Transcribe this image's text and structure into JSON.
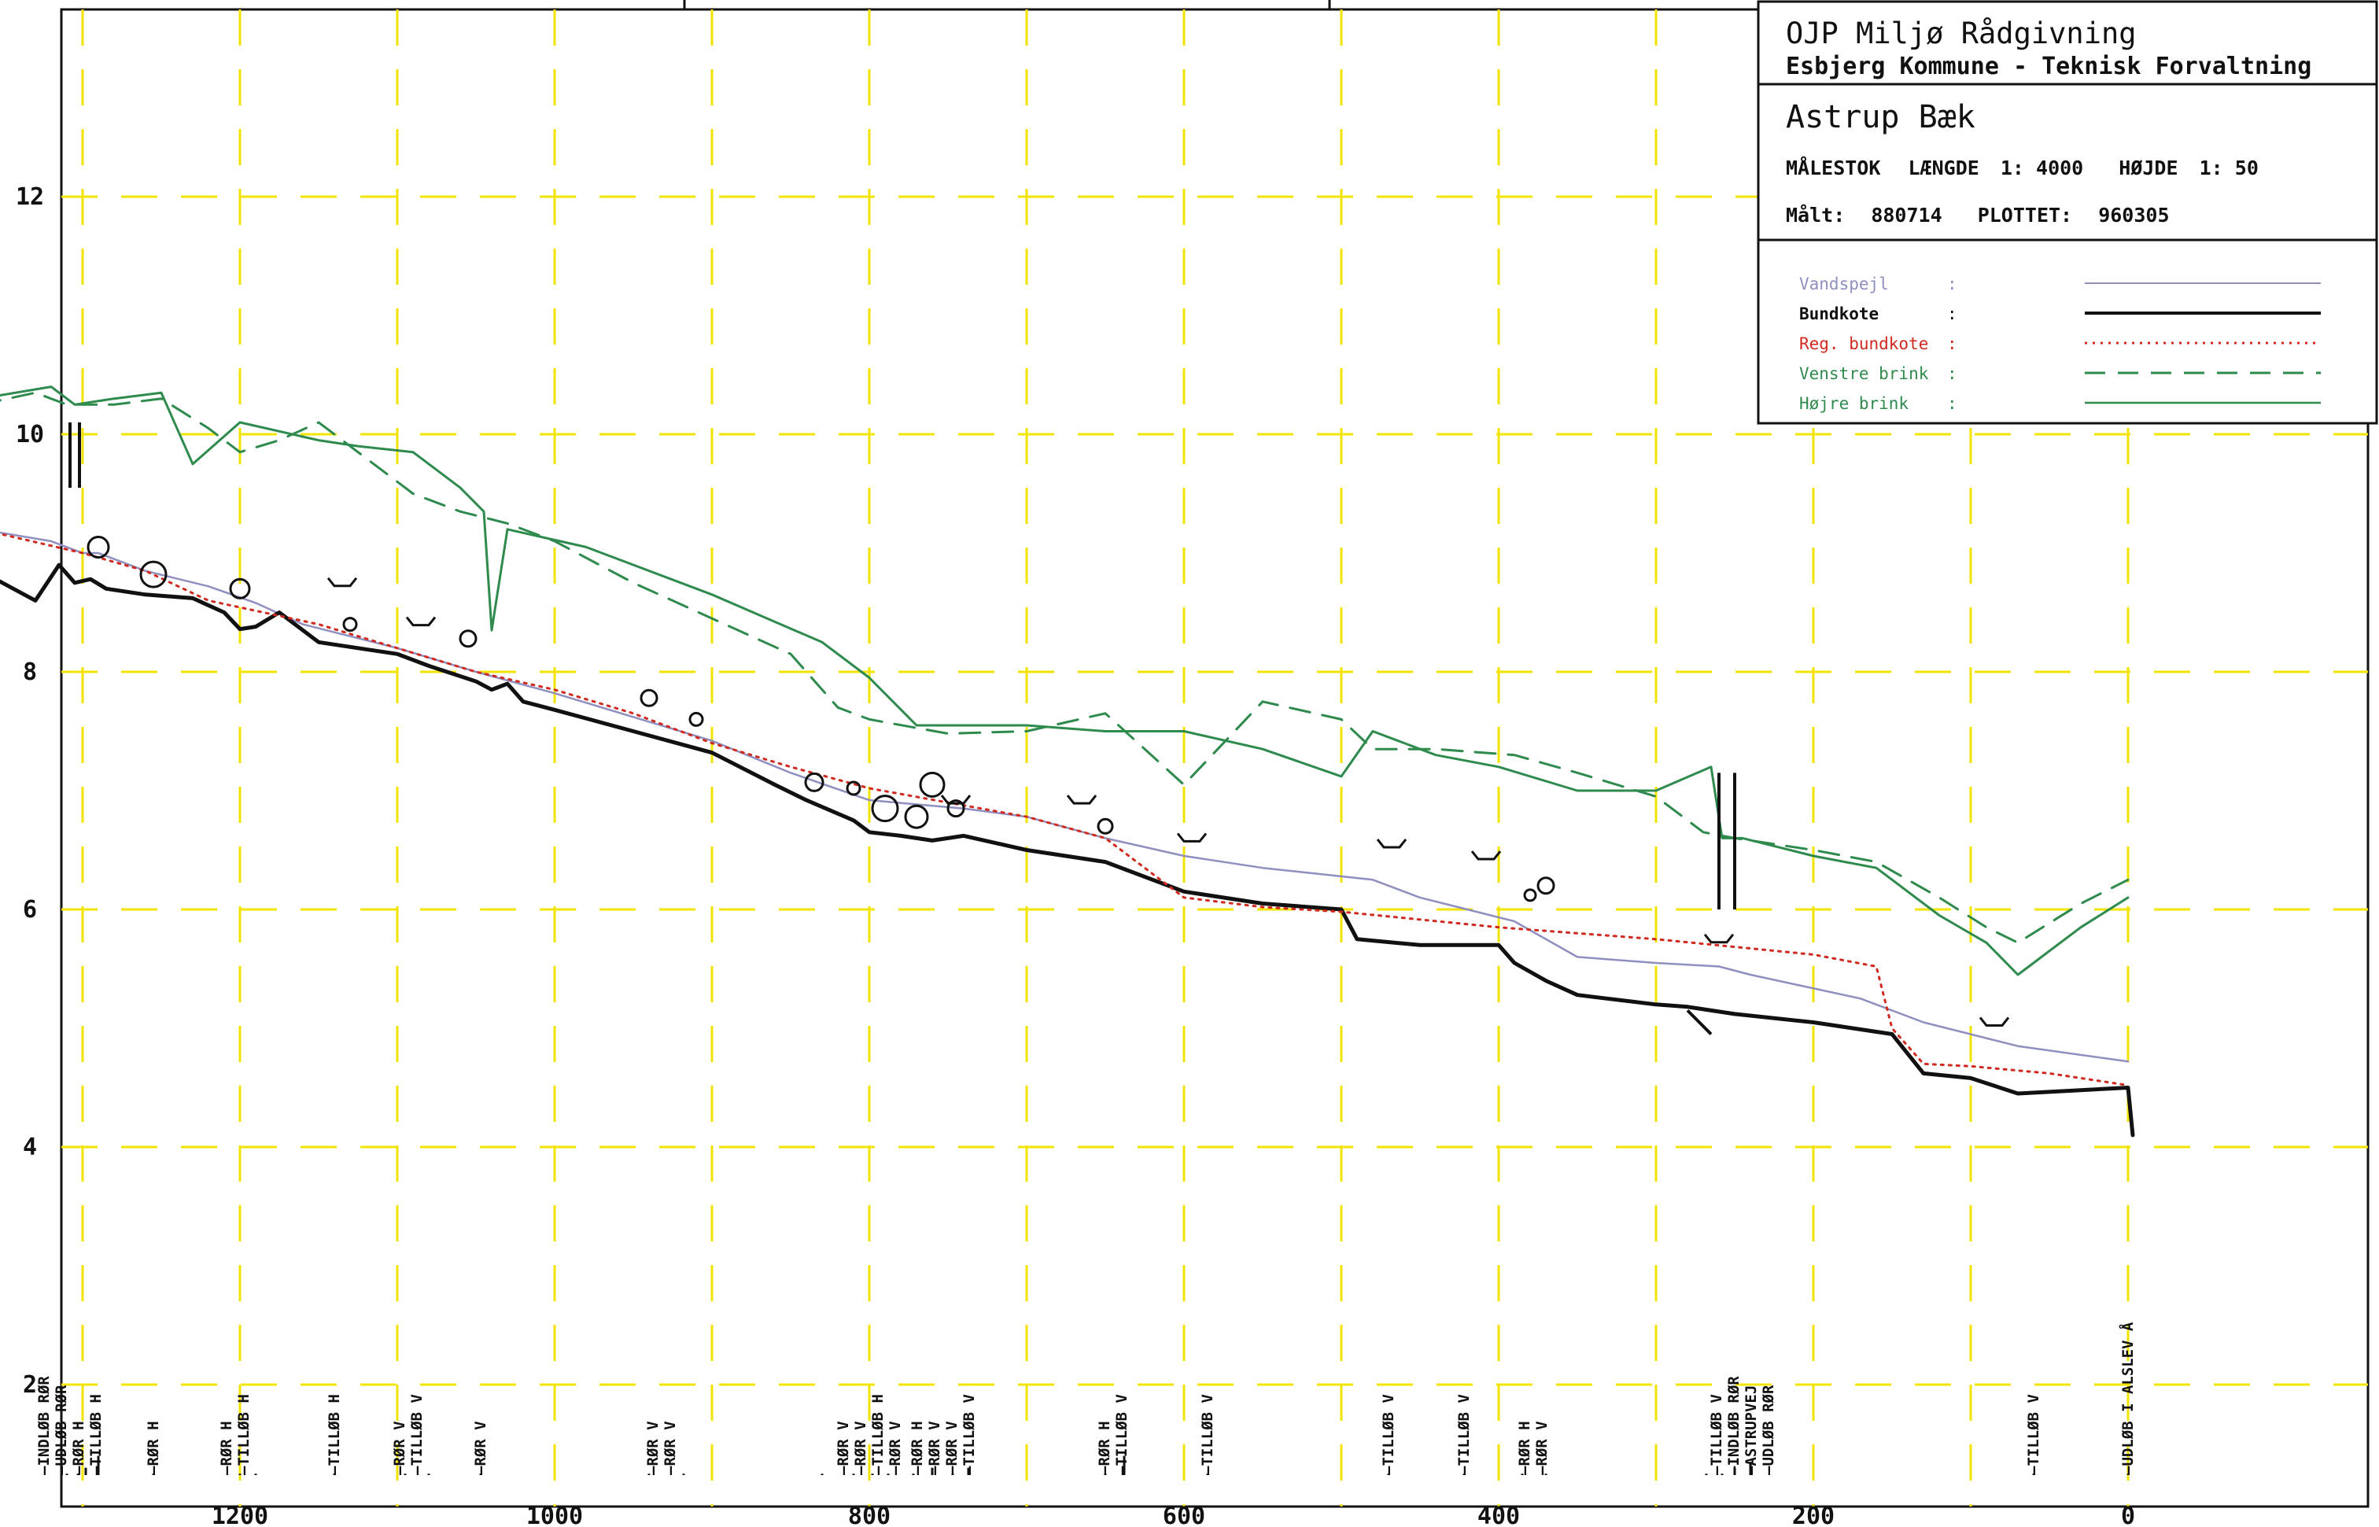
{
  "title_block": {
    "firm": "OJP Miljø Rådgivning",
    "client": "Esbjerg Kommune - Teknisk Forvaltning",
    "stream": "Astrup Bæk",
    "scale_label": "MÅLESTOK",
    "length_label": "LÆNGDE",
    "length_value": "1: 4000",
    "height_label": "HØJDE",
    "height_value": "1: 50",
    "measured_label": "Målt:",
    "measured_value": "880714",
    "plotted_label": "PLOTTET:",
    "plotted_value": "960305"
  },
  "colors": {
    "grid": "#f2e400",
    "water": "#8f8fc0",
    "bed": "#111111",
    "regbed": "#d02a20",
    "left_bank": "#2f8a4e",
    "right_bank": "#2f8a4e"
  },
  "chart_data": {
    "type": "line",
    "xlim": [
      1400,
      -150
    ],
    "ylim": [
      1.2,
      13
    ],
    "x_ticks": [
      1200,
      1000,
      800,
      600,
      400,
      200,
      0
    ],
    "y_ticks": [
      2,
      4,
      6,
      8,
      10,
      12
    ],
    "legend_position": "top-right",
    "grid": true,
    "series": [
      {
        "name": "Vandspejl",
        "key": "water",
        "points": [
          [
            1365,
            9.2
          ],
          [
            1320,
            9.1
          ],
          [
            1300,
            9.0
          ],
          [
            1290,
            9.0
          ],
          [
            1260,
            8.85
          ],
          [
            1220,
            8.72
          ],
          [
            1190,
            8.58
          ],
          [
            1160,
            8.4
          ],
          [
            1100,
            8.2
          ],
          [
            1050,
            8.0
          ],
          [
            1000,
            7.82
          ],
          [
            950,
            7.62
          ],
          [
            900,
            7.42
          ],
          [
            850,
            7.15
          ],
          [
            800,
            6.92
          ],
          [
            740,
            6.85
          ],
          [
            700,
            6.78
          ],
          [
            650,
            6.6
          ],
          [
            600,
            6.45
          ],
          [
            550,
            6.35
          ],
          [
            480,
            6.25
          ],
          [
            450,
            6.1
          ],
          [
            420,
            6.0
          ],
          [
            390,
            5.9
          ],
          [
            350,
            5.6
          ],
          [
            300,
            5.55
          ],
          [
            260,
            5.52
          ],
          [
            240,
            5.45
          ],
          [
            170,
            5.25
          ],
          [
            130,
            5.05
          ],
          [
            70,
            4.85
          ],
          [
            0,
            4.72
          ]
        ]
      },
      {
        "name": "Bundkote",
        "key": "bed",
        "points": [
          [
            1365,
            8.85
          ],
          [
            1330,
            8.6
          ],
          [
            1315,
            8.9
          ],
          [
            1305,
            8.75
          ],
          [
            1295,
            8.78
          ],
          [
            1285,
            8.7
          ],
          [
            1260,
            8.65
          ],
          [
            1230,
            8.62
          ],
          [
            1210,
            8.5
          ],
          [
            1200,
            8.36
          ],
          [
            1190,
            8.38
          ],
          [
            1175,
            8.5
          ],
          [
            1150,
            8.25
          ],
          [
            1100,
            8.15
          ],
          [
            1080,
            8.05
          ],
          [
            1050,
            7.92
          ],
          [
            1040,
            7.85
          ],
          [
            1030,
            7.9
          ],
          [
            1020,
            7.75
          ],
          [
            1000,
            7.68
          ],
          [
            950,
            7.5
          ],
          [
            900,
            7.32
          ],
          [
            860,
            7.05
          ],
          [
            840,
            6.92
          ],
          [
            810,
            6.75
          ],
          [
            800,
            6.65
          ],
          [
            780,
            6.62
          ],
          [
            760,
            6.58
          ],
          [
            740,
            6.62
          ],
          [
            700,
            6.5
          ],
          [
            650,
            6.4
          ],
          [
            600,
            6.15
          ],
          [
            550,
            6.05
          ],
          [
            500,
            6.0
          ],
          [
            490,
            5.75
          ],
          [
            450,
            5.7
          ],
          [
            400,
            5.7
          ],
          [
            390,
            5.55
          ],
          [
            370,
            5.4
          ],
          [
            350,
            5.28
          ],
          [
            300,
            5.2
          ],
          [
            280,
            5.18
          ],
          [
            250,
            5.12
          ],
          [
            200,
            5.05
          ],
          [
            150,
            4.95
          ],
          [
            130,
            4.62
          ],
          [
            100,
            4.58
          ],
          [
            70,
            4.45
          ],
          [
            0,
            4.5
          ],
          [
            -3,
            4.1
          ]
        ]
      },
      {
        "name": "Reg. bundkote",
        "key": "regbed",
        "points": [
          [
            1365,
            9.2
          ],
          [
            1300,
            9.0
          ],
          [
            1260,
            8.85
          ],
          [
            1220,
            8.6
          ],
          [
            1150,
            8.4
          ],
          [
            1100,
            8.2
          ],
          [
            1050,
            8.0
          ],
          [
            1000,
            7.85
          ],
          [
            950,
            7.65
          ],
          [
            900,
            7.4
          ],
          [
            850,
            7.2
          ],
          [
            800,
            7.02
          ],
          [
            750,
            6.9
          ],
          [
            700,
            6.78
          ],
          [
            650,
            6.6
          ],
          [
            600,
            6.1
          ],
          [
            550,
            6.02
          ],
          [
            500,
            5.98
          ],
          [
            400,
            5.85
          ],
          [
            300,
            5.75
          ],
          [
            200,
            5.62
          ],
          [
            160,
            5.52
          ],
          [
            150,
            5.0
          ],
          [
            130,
            4.7
          ],
          [
            100,
            4.68
          ],
          [
            50,
            4.62
          ],
          [
            0,
            4.52
          ]
        ]
      },
      {
        "name": "Venstre brink",
        "key": "left_bank",
        "points": [
          [
            1365,
            10.25
          ],
          [
            1330,
            10.35
          ],
          [
            1310,
            10.25
          ],
          [
            1280,
            10.25
          ],
          [
            1250,
            10.3
          ],
          [
            1220,
            10.05
          ],
          [
            1200,
            9.85
          ],
          [
            1175,
            9.95
          ],
          [
            1150,
            10.1
          ],
          [
            1120,
            9.8
          ],
          [
            1090,
            9.5
          ],
          [
            1060,
            9.35
          ],
          [
            1030,
            9.25
          ],
          [
            1000,
            9.1
          ],
          [
            950,
            8.75
          ],
          [
            900,
            8.45
          ],
          [
            850,
            8.15
          ],
          [
            820,
            7.7
          ],
          [
            800,
            7.6
          ],
          [
            750,
            7.48
          ],
          [
            700,
            7.5
          ],
          [
            650,
            7.65
          ],
          [
            600,
            7.05
          ],
          [
            550,
            7.75
          ],
          [
            500,
            7.6
          ],
          [
            480,
            7.35
          ],
          [
            440,
            7.35
          ],
          [
            390,
            7.3
          ],
          [
            350,
            7.15
          ],
          [
            300,
            6.95
          ],
          [
            270,
            6.65
          ],
          [
            250,
            6.6
          ],
          [
            200,
            6.5
          ],
          [
            160,
            6.4
          ],
          [
            120,
            6.1
          ],
          [
            90,
            5.85
          ],
          [
            70,
            5.72
          ],
          [
            30,
            6.05
          ],
          [
            0,
            6.25
          ]
        ]
      },
      {
        "name": "Højre brink",
        "key": "right_bank",
        "points": [
          [
            1365,
            10.3
          ],
          [
            1320,
            10.4
          ],
          [
            1305,
            10.25
          ],
          [
            1280,
            10.3
          ],
          [
            1250,
            10.35
          ],
          [
            1230,
            9.75
          ],
          [
            1200,
            10.1
          ],
          [
            1150,
            9.95
          ],
          [
            1125,
            9.9
          ],
          [
            1090,
            9.85
          ],
          [
            1060,
            9.55
          ],
          [
            1045,
            9.35
          ],
          [
            1040,
            8.35
          ],
          [
            1030,
            9.2
          ],
          [
            980,
            9.05
          ],
          [
            900,
            8.65
          ],
          [
            830,
            8.25
          ],
          [
            800,
            7.95
          ],
          [
            770,
            7.55
          ],
          [
            700,
            7.55
          ],
          [
            650,
            7.5
          ],
          [
            600,
            7.5
          ],
          [
            550,
            7.35
          ],
          [
            500,
            7.12
          ],
          [
            480,
            7.5
          ],
          [
            440,
            7.3
          ],
          [
            400,
            7.2
          ],
          [
            350,
            7.0
          ],
          [
            300,
            7.0
          ],
          [
            265,
            7.2
          ],
          [
            258,
            6.6
          ],
          [
            245,
            6.6
          ],
          [
            200,
            6.45
          ],
          [
            160,
            6.35
          ],
          [
            120,
            5.95
          ],
          [
            90,
            5.72
          ],
          [
            70,
            5.45
          ],
          [
            30,
            5.85
          ],
          [
            0,
            6.1
          ]
        ]
      }
    ],
    "legend": [
      {
        "key": "water",
        "label": "Vandspejl",
        "sep": ":"
      },
      {
        "key": "bed",
        "label": "Bundkote",
        "sep": ":"
      },
      {
        "key": "regbed",
        "label": "Reg. bundkote",
        "sep": ":"
      },
      {
        "key": "left_bank",
        "label": "Venstre brink",
        "sep": ":"
      },
      {
        "key": "right_bank",
        "label": "Højre brink",
        "sep": ":"
      }
    ],
    "circles": [
      [
        1290,
        9.05,
        13
      ],
      [
        1255,
        8.82,
        16
      ],
      [
        1200,
        8.7,
        12
      ],
      [
        1130,
        8.4,
        8
      ],
      [
        1055,
        8.28,
        10
      ],
      [
        940,
        7.78,
        10
      ],
      [
        910,
        7.6,
        8
      ],
      [
        835,
        7.07,
        11
      ],
      [
        810,
        7.02,
        8
      ],
      [
        790,
        6.85,
        16
      ],
      [
        770,
        6.78,
        14
      ],
      [
        760,
        7.05,
        15
      ],
      [
        745,
        6.85,
        10
      ],
      [
        650,
        6.7,
        9
      ],
      [
        380,
        6.12,
        7
      ],
      [
        370,
        6.2,
        10
      ]
    ],
    "culverts": [
      [
        1135,
        8.75
      ],
      [
        1085,
        8.42
      ],
      [
        745,
        6.92
      ],
      [
        665,
        6.92
      ],
      [
        595,
        6.6
      ],
      [
        468,
        6.55
      ],
      [
        408,
        6.45
      ],
      [
        260,
        5.75
      ],
      [
        85,
        5.05
      ]
    ],
    "annotations": [
      {
        "x": 1365,
        "lines": [
          "TILLØB H"
        ],
        "ticks": [
          [
            1365,
            1.25
          ]
        ]
      },
      {
        "x": 1308,
        "lines": [
          "INDLØB RØR",
          "UDLØB RØR",
          "RØR H",
          "TILLØB H"
        ],
        "ticks": [
          [
            1310,
            1.25
          ],
          [
            1303,
            1.25
          ],
          [
            1298,
            1.3
          ],
          [
            1290,
            1.4
          ]
        ]
      },
      {
        "x": 1255,
        "lines": [
          "RØR H"
        ],
        "ticks": [
          [
            1255,
            1.25
          ]
        ]
      },
      {
        "x": 1203,
        "lines": [
          "RØR H",
          "TILLØB H"
        ],
        "ticks": [
          [
            1200,
            1.25
          ],
          [
            1190,
            1.25
          ]
        ]
      },
      {
        "x": 1140,
        "lines": [
          "TILLØB H"
        ],
        "ticks": [
          [
            1140,
            1.25
          ]
        ]
      },
      {
        "x": 1093,
        "lines": [
          "RØR V",
          "TILLØB V"
        ],
        "ticks": [
          [
            1095,
            1.25
          ],
          [
            1080,
            1.25
          ]
        ]
      },
      {
        "x": 1047,
        "lines": [
          "RØR V"
        ],
        "ticks": [
          [
            1047,
            1.25
          ]
        ]
      },
      {
        "x": 932,
        "lines": [
          "RØR V",
          "RØR V"
        ],
        "ticks": [
          [
            940,
            1.25
          ],
          [
            918,
            1.25
          ]
        ]
      },
      {
        "x": 800,
        "lines": [
          "RØR V",
          "RØR V",
          "TILLØB H",
          "RØR V"
        ],
        "ticks": [
          [
            830,
            1.25
          ],
          [
            810,
            1.25
          ],
          [
            798,
            1.25
          ],
          [
            788,
            1.25
          ]
        ]
      },
      {
        "x": 753,
        "lines": [
          "RØR H",
          "RØR V",
          "RØR V",
          "TILLØB V"
        ],
        "ticks": [
          [
            772,
            1.25
          ],
          [
            760,
            1.3
          ],
          [
            747,
            1.25
          ],
          [
            737,
            1.3
          ]
        ]
      },
      {
        "x": 645,
        "lines": [
          "RØR H",
          "TILLØB V"
        ],
        "ticks": [
          [
            650,
            1.25
          ],
          [
            638,
            1.4
          ]
        ]
      },
      {
        "x": 585,
        "lines": [
          "TILLØB V"
        ],
        "ticks": [
          [
            585,
            1.25
          ]
        ]
      },
      {
        "x": 470,
        "lines": [
          "TILLØB V"
        ],
        "ticks": [
          [
            470,
            1.25
          ]
        ]
      },
      {
        "x": 422,
        "lines": [
          "TILLØB V"
        ],
        "ticks": [
          [
            422,
            1.25
          ]
        ]
      },
      {
        "x": 378,
        "lines": [
          "RØR H",
          "RØR V"
        ],
        "ticks": [
          [
            385,
            1.25
          ],
          [
            370,
            1.25
          ]
        ]
      },
      {
        "x": 245,
        "lines": [
          "TILLØB V",
          "INDLØB RØR",
          "ASTRUPVEJ",
          "UDLØB RØR"
        ],
        "ticks": [
          [
            268,
            1.25
          ],
          [
            258,
            1.25
          ],
          [
            250,
            1.3
          ],
          [
            240,
            1.35
          ]
        ]
      },
      {
        "x": 60,
        "lines": [
          "TILLØB V"
        ],
        "ticks": [
          [
            60,
            1.25
          ]
        ]
      },
      {
        "x": 0,
        "lines": [
          "UDLØB I ALSLEV Å"
        ],
        "ticks": [
          [
            0,
            1.25
          ]
        ]
      }
    ]
  }
}
